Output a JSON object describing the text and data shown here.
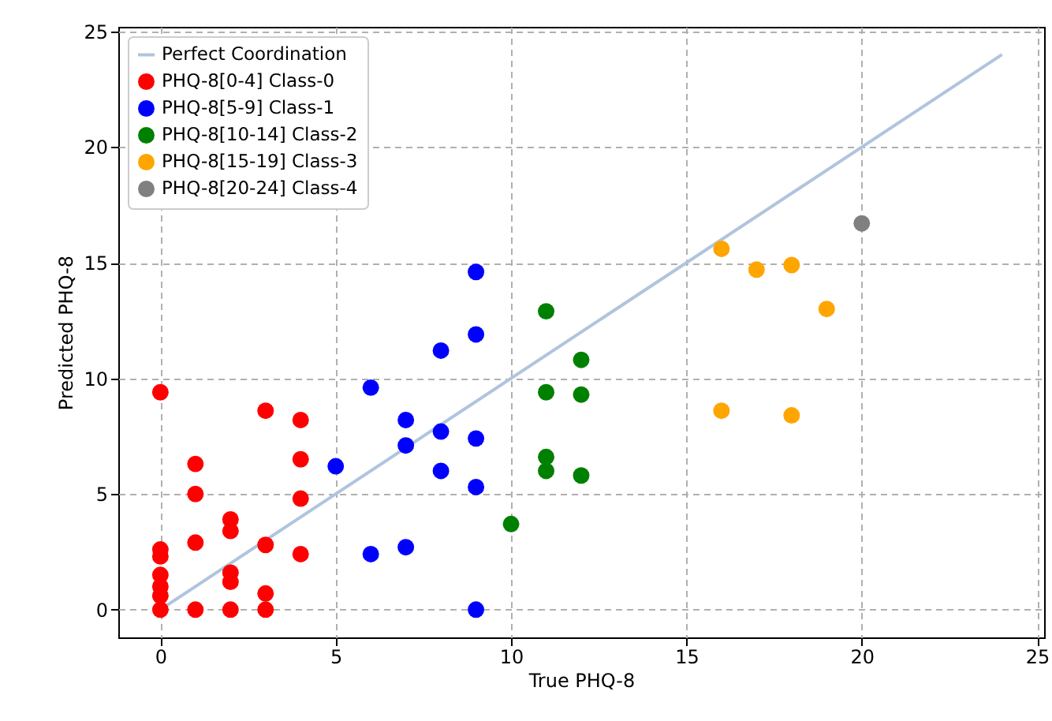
{
  "chart_data": {
    "type": "scatter",
    "xlabel": "True PHQ-8",
    "ylabel": "Predicted PHQ-8",
    "xlim": [
      -1.2,
      25.2
    ],
    "ylim": [
      -1.2,
      25.2
    ],
    "xticks": [
      0,
      5,
      10,
      15,
      20,
      25
    ],
    "yticks": [
      0,
      5,
      10,
      15,
      20,
      25
    ],
    "grid": true,
    "legend": "top left",
    "marker": "circle",
    "series": [
      {
        "name": "Perfect Coordination",
        "type": "line",
        "line_style": "solid",
        "marker": "none",
        "color": "#b0c4de",
        "x": [
          0,
          24
        ],
        "values": [
          0,
          24
        ]
      },
      {
        "name": "PHQ-8[0-4] Class-0",
        "color": "#ff0000",
        "x": [
          0,
          0,
          0,
          0,
          0,
          0,
          0,
          1,
          1,
          1,
          1,
          2,
          2,
          2,
          2,
          2,
          3,
          3,
          3,
          3,
          4,
          4,
          4,
          4
        ],
        "values": [
          9.4,
          2.6,
          2.3,
          1.5,
          1.0,
          0.6,
          0,
          6.3,
          5.0,
          2.9,
          0,
          3.9,
          3.4,
          1.6,
          1.2,
          0,
          8.6,
          2.8,
          0.7,
          0,
          8.2,
          6.5,
          4.8,
          2.4
        ]
      },
      {
        "name": "PHQ-8[5-9] Class-1",
        "color": "#0000ff",
        "x": [
          5,
          6,
          6,
          7,
          7,
          7,
          8,
          8,
          8,
          9,
          9,
          9,
          9,
          9
        ],
        "values": [
          6.2,
          9.6,
          2.4,
          8.2,
          7.1,
          2.7,
          11.2,
          7.7,
          6.0,
          14.6,
          11.9,
          7.4,
          5.3,
          0
        ]
      },
      {
        "name": "PHQ-8[10-14] Class-2",
        "color": "#008000",
        "x": [
          10,
          11,
          11,
          11,
          11,
          12,
          12,
          12
        ],
        "values": [
          3.7,
          12.9,
          9.4,
          6.6,
          6.0,
          10.8,
          9.3,
          5.8
        ]
      },
      {
        "name": "PHQ-8[15-19] Class-3",
        "color": "#ffa500",
        "x": [
          16,
          16,
          17,
          18,
          18,
          19
        ],
        "values": [
          15.6,
          8.6,
          14.7,
          14.9,
          8.4,
          13.0
        ]
      },
      {
        "name": "PHQ-8[20-24] Class-4",
        "color": "#808080",
        "x": [
          20
        ],
        "values": [
          16.7
        ]
      }
    ]
  }
}
